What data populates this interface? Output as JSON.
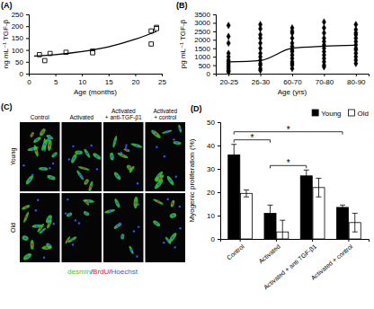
{
  "chart_data": [
    {
      "type": "scatter",
      "title": "(A)",
      "x_label": "Age (months)",
      "y_label": "ng mL⁻¹ TGF-β",
      "xlim": [
        0,
        25
      ],
      "xticks": [
        0,
        5,
        10,
        15,
        20,
        25
      ],
      "ylim": [
        0,
        250
      ],
      "yticks": [
        0,
        50,
        100,
        150,
        200,
        250
      ],
      "series": [
        {
          "type": "scatter",
          "marker": "square-open",
          "color": "#000000",
          "x": [
            2,
            3,
            4,
            7,
            12,
            12,
            23,
            23,
            24,
            24
          ],
          "values": [
            80,
            55,
            85,
            90,
            95,
            88,
            125,
            180,
            195,
            190
          ]
        },
        {
          "type": "line",
          "color": "#000000",
          "x": [
            1,
            5,
            10,
            15,
            20,
            24
          ],
          "values": [
            74,
            80,
            93,
            113,
            145,
            178
          ]
        }
      ]
    },
    {
      "type": "scatter",
      "title": "(B)",
      "x_label": "Age (yrs)",
      "y_label": "pg mL⁻¹ TGF-β",
      "categories": [
        "20-25",
        "26-30",
        "60-70",
        "70-80",
        "80-90"
      ],
      "ylim": [
        0,
        3500
      ],
      "yticks": [
        0,
        500,
        1000,
        1500,
        2000,
        2500,
        3000,
        3500
      ],
      "series": [
        {
          "type": "scatter",
          "marker": "diamond",
          "color": "#000000",
          "values": [
            [
              2850,
              2200,
              1800,
              1200,
              1000,
              800,
              700,
              600,
              500,
              400,
              300,
              200,
              150,
              100
            ],
            [
              2900,
              2650,
              2300,
              2100,
              1800,
              1500,
              1200,
              1000,
              800,
              600,
              500,
              300,
              200
            ],
            [
              2700,
              2500,
              2400,
              2100,
              1800,
              1600,
              1400,
              1300,
              1100,
              900,
              700,
              600,
              500,
              300
            ],
            [
              3050,
              2700,
              2400,
              2100,
              1900,
              1700,
              1500,
              1300,
              1100,
              900,
              700,
              500,
              400
            ],
            [
              2900,
              2600,
              2400,
              2300,
              2100,
              1900,
              1700,
              1500,
              1400,
              1200,
              1000,
              800,
              600
            ]
          ]
        },
        {
          "type": "line",
          "color": "#000000",
          "values": [
            700,
            780,
            1500,
            1620,
            1680
          ]
        }
      ]
    },
    {
      "type": "image_grid",
      "title": "(C)",
      "columns": [
        "Control",
        "Activated",
        "Activated + anti-TGF-β1",
        "Activated + control"
      ],
      "rows": [
        "Young",
        "Old"
      ],
      "stains": [
        {
          "text": "desmin",
          "color": "#33cc33"
        },
        {
          "text": "BrdU",
          "color": "#dd2222"
        },
        {
          "text": "Hoechst",
          "color": "#3355ff"
        }
      ],
      "separator": "/"
    },
    {
      "type": "bar",
      "title": "(D)",
      "y_label": "Myogenic proliferation (%)",
      "categories": [
        "Control",
        "Activated",
        "Activated + anti TGF-β1",
        "Activated + control"
      ],
      "ylim": [
        0,
        50
      ],
      "yticks": [
        0,
        10,
        20,
        30,
        40,
        50
      ],
      "legend": "top-right",
      "series": [
        {
          "name": "Young",
          "color": "#000000",
          "values": [
            36,
            11,
            27,
            13.5
          ],
          "errors": [
            4.5,
            3.5,
            2.5,
            1
          ]
        },
        {
          "name": "Old",
          "color": "#ffffff",
          "values": [
            19.5,
            3,
            22,
            7
          ],
          "errors": [
            1.5,
            5,
            4,
            4
          ]
        }
      ],
      "annotations": [
        {
          "text": "*",
          "from": 0,
          "to": 1
        },
        {
          "text": "*",
          "from": 1,
          "to": 2
        },
        {
          "text": "*",
          "from": 0,
          "to": 3
        }
      ]
    }
  ]
}
